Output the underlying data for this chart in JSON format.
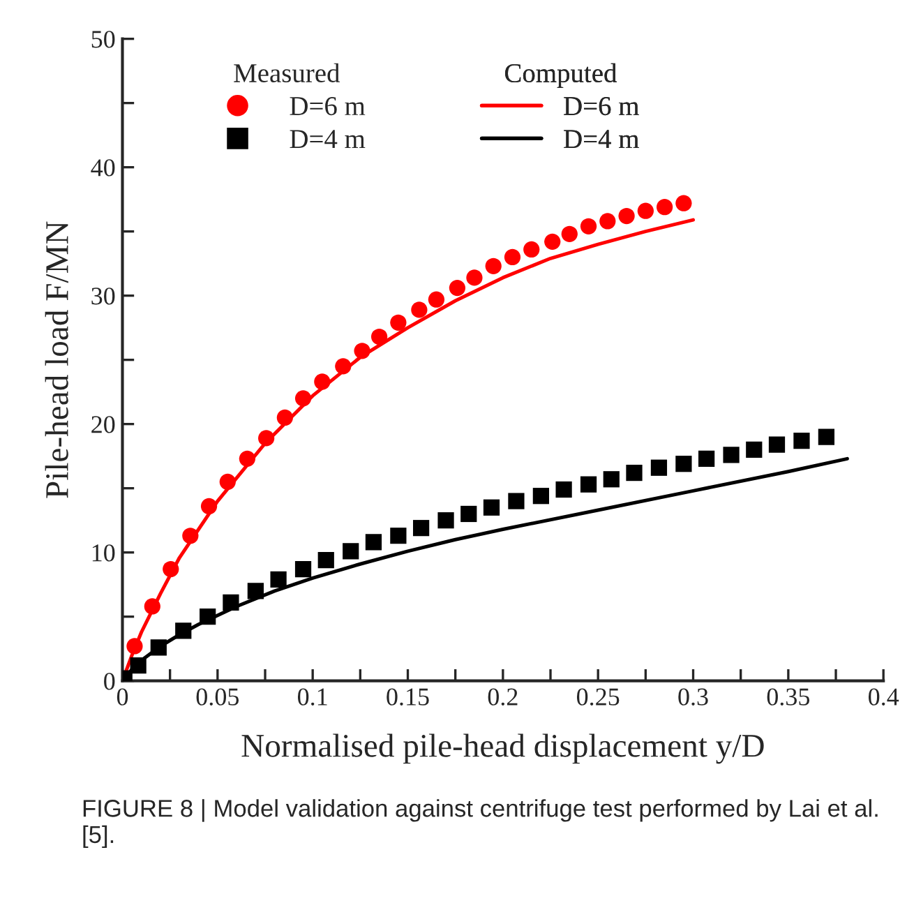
{
  "chart_data": {
    "type": "scatter",
    "xlabel": "Normalised pile-head displacement y/D",
    "ylabel": "Pile-head load F/MN",
    "legend_title": [
      "Measured",
      "Computed"
    ],
    "legend": "top left",
    "grid": false,
    "xlim": [
      0,
      0.4
    ],
    "xticks": [
      0,
      {
        "value": 0.025,
        "label": null
      },
      0.05,
      {
        "value": 0.075,
        "label": null
      },
      0.1,
      {
        "value": 0.125,
        "label": null
      },
      0.15,
      {
        "value": 0.175,
        "label": null
      },
      0.2,
      {
        "value": 0.225,
        "label": null
      },
      0.25,
      {
        "value": 0.275,
        "label": null
      },
      0.3,
      {
        "value": 0.325,
        "label": null
      },
      0.35,
      {
        "value": 0.375,
        "label": null
      },
      0.4
    ],
    "ylim": [
      0,
      50
    ],
    "yticks": [
      0,
      {
        "value": 5,
        "label": null
      },
      10,
      {
        "value": 15,
        "label": null
      },
      20,
      {
        "value": 25,
        "label": null
      },
      30,
      {
        "value": 35,
        "label": null
      },
      40,
      {
        "value": 45,
        "label": null
      },
      50
    ],
    "annotations": [
      "FIGURE 8 | Model validation against centrifuge test performed by Lai et al. [5]."
    ],
    "series": [
      {
        "name": "D=6 m",
        "marker": "circle",
        "color": "#ff0000",
        "x": [
          0.0064,
          0.0157,
          0.0254,
          0.0357,
          0.0455,
          0.0553,
          0.0656,
          0.0756,
          0.0854,
          0.095,
          0.105,
          0.116,
          0.126,
          0.135,
          0.145,
          0.156,
          0.165,
          0.176,
          0.185,
          0.195,
          0.205,
          0.215,
          0.226,
          0.235,
          0.245,
          0.255,
          0.265,
          0.275,
          0.285,
          0.295
        ],
        "values": [
          2.7,
          5.8,
          8.7,
          11.3,
          13.6,
          15.5,
          17.3,
          18.9,
          20.5,
          22.0,
          23.3,
          24.5,
          25.7,
          26.8,
          27.9,
          28.9,
          29.7,
          30.6,
          31.4,
          32.3,
          33.0,
          33.6,
          34.2,
          34.8,
          35.4,
          35.8,
          36.2,
          36.6,
          36.9,
          37.2
        ]
      },
      {
        "name": "D=4 m",
        "marker": "square",
        "color": "#000000",
        "x": [
          0.001,
          0.0083,
          0.019,
          0.032,
          0.0448,
          0.057,
          0.07,
          0.082,
          0.095,
          0.107,
          0.12,
          0.132,
          0.145,
          0.157,
          0.17,
          0.182,
          0.194,
          0.207,
          0.22,
          0.232,
          0.245,
          0.257,
          0.269,
          0.282,
          0.295,
          0.307,
          0.32,
          0.332,
          0.344,
          0.357,
          0.37
        ],
        "values": [
          0.2,
          1.2,
          2.6,
          3.9,
          5.0,
          6.1,
          7.0,
          7.9,
          8.7,
          9.4,
          10.1,
          10.8,
          11.3,
          11.9,
          12.5,
          13.0,
          13.5,
          14.0,
          14.4,
          14.9,
          15.3,
          15.7,
          16.2,
          16.6,
          16.9,
          17.3,
          17.6,
          18.0,
          18.4,
          18.7,
          19.0
        ]
      },
      {
        "name": "D=6 m",
        "type": "line",
        "line_style": "solid",
        "color": "#ff0000",
        "x": [
          0,
          0.005,
          0.01,
          0.02,
          0.03,
          0.05,
          0.075,
          0.1,
          0.125,
          0.15,
          0.175,
          0.2,
          0.225,
          0.25,
          0.275,
          0.3
        ],
        "values": [
          0,
          2.0,
          3.8,
          6.8,
          9.6,
          14.0,
          18.5,
          22.2,
          25.2,
          27.5,
          29.6,
          31.4,
          32.9,
          34.0,
          35.0,
          35.9
        ]
      },
      {
        "name": "D=4 m",
        "type": "line",
        "line_style": "solid",
        "color": "#000000",
        "x": [
          0,
          0.005,
          0.01,
          0.02,
          0.03,
          0.04,
          0.06,
          0.08,
          0.1,
          0.125,
          0.15,
          0.175,
          0.2,
          0.25,
          0.3,
          0.35,
          0.381
        ],
        "values": [
          0,
          0.9,
          1.6,
          2.7,
          3.6,
          4.4,
          5.8,
          7.0,
          8.0,
          9.1,
          10.1,
          11.0,
          11.8,
          13.3,
          14.8,
          16.3,
          17.3
        ]
      }
    ]
  }
}
